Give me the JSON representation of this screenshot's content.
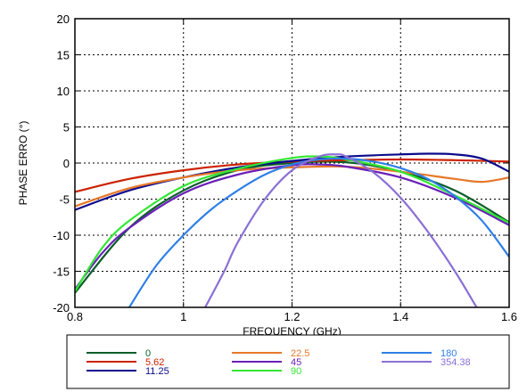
{
  "chart_data": {
    "type": "line",
    "xlabel": "FREQUENCY (GHz)",
    "ylabel": "PHASE ERRO (°)",
    "xlim": [
      0.8,
      1.6
    ],
    "ylim": [
      -20,
      20
    ],
    "xticks": [
      "0.8",
      "1",
      "1.2",
      "1.4",
      "1.6"
    ],
    "yticks": [
      "-20",
      "-15",
      "-10",
      "-5",
      "0",
      "5",
      "10",
      "15",
      "20"
    ],
    "grid": "dotted-major",
    "legend": "bottom-outside",
    "series": [
      {
        "name": "0",
        "color": "#0b5e2b",
        "x": [
          0.8,
          0.9,
          1.0,
          1.1,
          1.2,
          1.3,
          1.4,
          1.5,
          1.6
        ],
        "y": [
          -18.0,
          -9.0,
          -3.8,
          -1.0,
          0.0,
          0.1,
          -1.2,
          -3.8,
          -8.2
        ]
      },
      {
        "name": "5.62",
        "color": "#cc2200",
        "x": [
          0.8,
          0.9,
          1.0,
          1.1,
          1.2,
          1.3,
          1.4,
          1.5,
          1.6
        ],
        "y": [
          -4.0,
          -2.2,
          -1.0,
          -0.2,
          0.2,
          0.4,
          0.5,
          0.4,
          0.2
        ]
      },
      {
        "name": "11.25",
        "color": "#0a0a8c",
        "x": [
          0.8,
          0.9,
          1.0,
          1.1,
          1.2,
          1.3,
          1.4,
          1.45,
          1.5,
          1.55,
          1.6
        ],
        "y": [
          -6.5,
          -3.8,
          -2.0,
          -0.6,
          0.3,
          0.9,
          1.2,
          1.3,
          1.2,
          0.6,
          -1.2
        ]
      },
      {
        "name": "22.5",
        "color": "#e6782a",
        "x": [
          0.8,
          0.9,
          1.0,
          1.1,
          1.2,
          1.3,
          1.4,
          1.5,
          1.55,
          1.6
        ],
        "y": [
          -6.0,
          -3.5,
          -2.0,
          -1.0,
          -0.6,
          -0.5,
          -1.2,
          -2.2,
          -2.6,
          -2.0
        ]
      },
      {
        "name": "45",
        "color": "#6a1fb8",
        "x": [
          0.8,
          0.85,
          0.9,
          1.0,
          1.1,
          1.2,
          1.25,
          1.3,
          1.4,
          1.5,
          1.6
        ],
        "y": [
          -17.5,
          -12.5,
          -9.0,
          -4.2,
          -1.6,
          -0.3,
          -0.2,
          -0.5,
          -2.0,
          -4.8,
          -8.6
        ]
      },
      {
        "name": "90",
        "color": "#33e633",
        "x": [
          0.8,
          0.85,
          0.9,
          1.0,
          1.1,
          1.2,
          1.25,
          1.3,
          1.4,
          1.5,
          1.6
        ],
        "y": [
          -17.8,
          -11.8,
          -8.0,
          -3.2,
          -0.8,
          0.7,
          0.9,
          0.5,
          -1.2,
          -4.5,
          -8.3
        ]
      },
      {
        "name": "180",
        "color": "#2f7fe6",
        "x": [
          0.9,
          0.95,
          1.0,
          1.05,
          1.1,
          1.15,
          1.2,
          1.25,
          1.3,
          1.35,
          1.4,
          1.45,
          1.5,
          1.55,
          1.6
        ],
        "y": [
          -20.0,
          -14.2,
          -10.0,
          -6.5,
          -3.8,
          -1.6,
          -0.2,
          0.5,
          0.6,
          0.2,
          -0.7,
          -2.2,
          -4.6,
          -8.0,
          -13.0
        ]
      },
      {
        "name": "354.38",
        "color": "#8b6fd6",
        "x": [
          1.04,
          1.075,
          1.1,
          1.15,
          1.2,
          1.25,
          1.28,
          1.3,
          1.35,
          1.4,
          1.45,
          1.5,
          1.54
        ],
        "y": [
          -20.0,
          -15.0,
          -11.0,
          -5.0,
          -1.0,
          0.9,
          1.2,
          0.9,
          -1.3,
          -4.8,
          -9.5,
          -15.0,
          -20.0
        ]
      }
    ]
  }
}
